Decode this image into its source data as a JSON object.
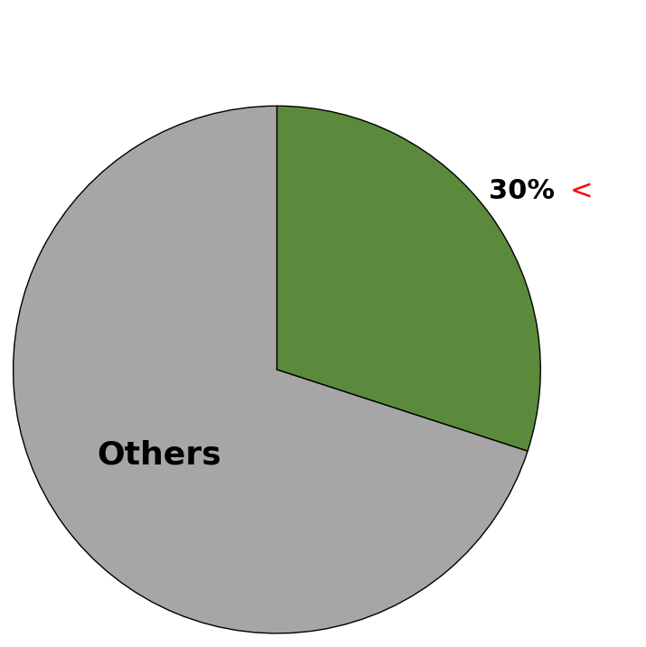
{
  "chart_data": {
    "type": "pie",
    "categories": [
      null,
      "Others"
    ],
    "values": [
      30,
      70
    ],
    "value_labels": [
      "30%",
      null
    ],
    "colors": [
      "#5b8a3c",
      "#a6a6a6"
    ],
    "annotations": [
      {
        "text": "<",
        "color": "#ff0000"
      }
    ]
  }
}
